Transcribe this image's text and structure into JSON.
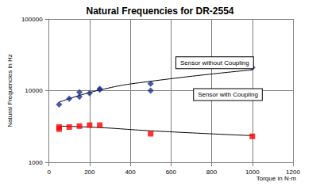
{
  "chart_data": {
    "type": "scatter",
    "title": "Natural Frequencies for DR-2554",
    "x_label": "Torque in N·m",
    "y_label": "Natural Frequencies in Hz",
    "log": "y",
    "grid": true,
    "xlim": [
      0,
      1200
    ],
    "xticks": [
      0,
      200,
      400,
      600,
      800,
      1000,
      1200
    ],
    "ylim": [
      1000,
      100000
    ],
    "yticks": [
      1000,
      10000,
      100000
    ],
    "series": [
      {
        "name": "Sensor without Coupling",
        "type": "scatter",
        "color": "#1a2f8c",
        "marker": "diamond",
        "x": [
          50,
          100,
          150,
          150,
          200,
          250,
          250,
          500,
          500,
          1000
        ],
        "values": [
          6400,
          7700,
          8200,
          9500,
          9200,
          10300,
          10600,
          10000,
          12500,
          21000
        ]
      },
      {
        "name": "Sensor with Coupling",
        "type": "scatter",
        "color": "#ff0000",
        "marker": "square",
        "x": [
          50,
          50,
          100,
          150,
          200,
          250,
          500,
          1000
        ],
        "values": [
          2900,
          3100,
          3100,
          3200,
          3300,
          3300,
          2500,
          2300
        ]
      },
      {
        "type": "line",
        "color": "#000000",
        "line_style": "solid",
        "x": [
          50,
          250,
          500,
          1000
        ],
        "values": [
          6900,
          10200,
          13500,
          19500
        ]
      },
      {
        "type": "line",
        "color": "#000000",
        "line_style": "solid",
        "x": [
          50,
          250,
          500,
          1000
        ],
        "values": [
          3200,
          3050,
          2750,
          2350
        ]
      }
    ],
    "annotations": [
      {
        "text": "Sensor without Coupling",
        "x": 815,
        "y": 24500
      },
      {
        "text": "Sensor with Coupling",
        "x": 880,
        "y": 8800
      }
    ]
  }
}
